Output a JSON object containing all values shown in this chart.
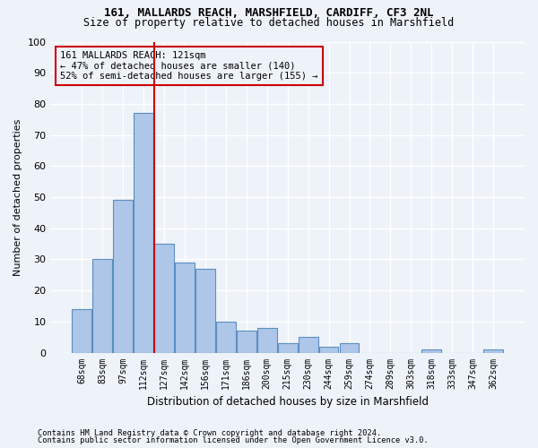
{
  "title1": "161, MALLARDS REACH, MARSHFIELD, CARDIFF, CF3 2NL",
  "title2": "Size of property relative to detached houses in Marshfield",
  "xlabel": "Distribution of detached houses by size in Marshfield",
  "ylabel": "Number of detached properties",
  "footnote1": "Contains HM Land Registry data © Crown copyright and database right 2024.",
  "footnote2": "Contains public sector information licensed under the Open Government Licence v3.0.",
  "bar_labels": [
    "68sqm",
    "83sqm",
    "97sqm",
    "112sqm",
    "127sqm",
    "142sqm",
    "156sqm",
    "171sqm",
    "186sqm",
    "200sqm",
    "215sqm",
    "230sqm",
    "244sqm",
    "259sqm",
    "274sqm",
    "289sqm",
    "303sqm",
    "318sqm",
    "333sqm",
    "347sqm",
    "362sqm"
  ],
  "bar_values": [
    14,
    30,
    49,
    77,
    35,
    29,
    27,
    10,
    7,
    8,
    3,
    5,
    2,
    3,
    0,
    0,
    0,
    1,
    0,
    0,
    1
  ],
  "bar_color": "#aec6e8",
  "bar_edge_color": "#5a8fc2",
  "subject_line_color": "#cc0000",
  "annotation_line1": "161 MALLARDS REACH: 121sqm",
  "annotation_line2": "← 47% of detached houses are smaller (140)",
  "annotation_line3": "52% of semi-detached houses are larger (155) →",
  "annotation_box_color": "#cc0000",
  "ylim": [
    0,
    100
  ],
  "yticks": [
    0,
    10,
    20,
    30,
    40,
    50,
    60,
    70,
    80,
    90,
    100
  ],
  "bg_color": "#eef2f9",
  "grid_color": "#ffffff"
}
